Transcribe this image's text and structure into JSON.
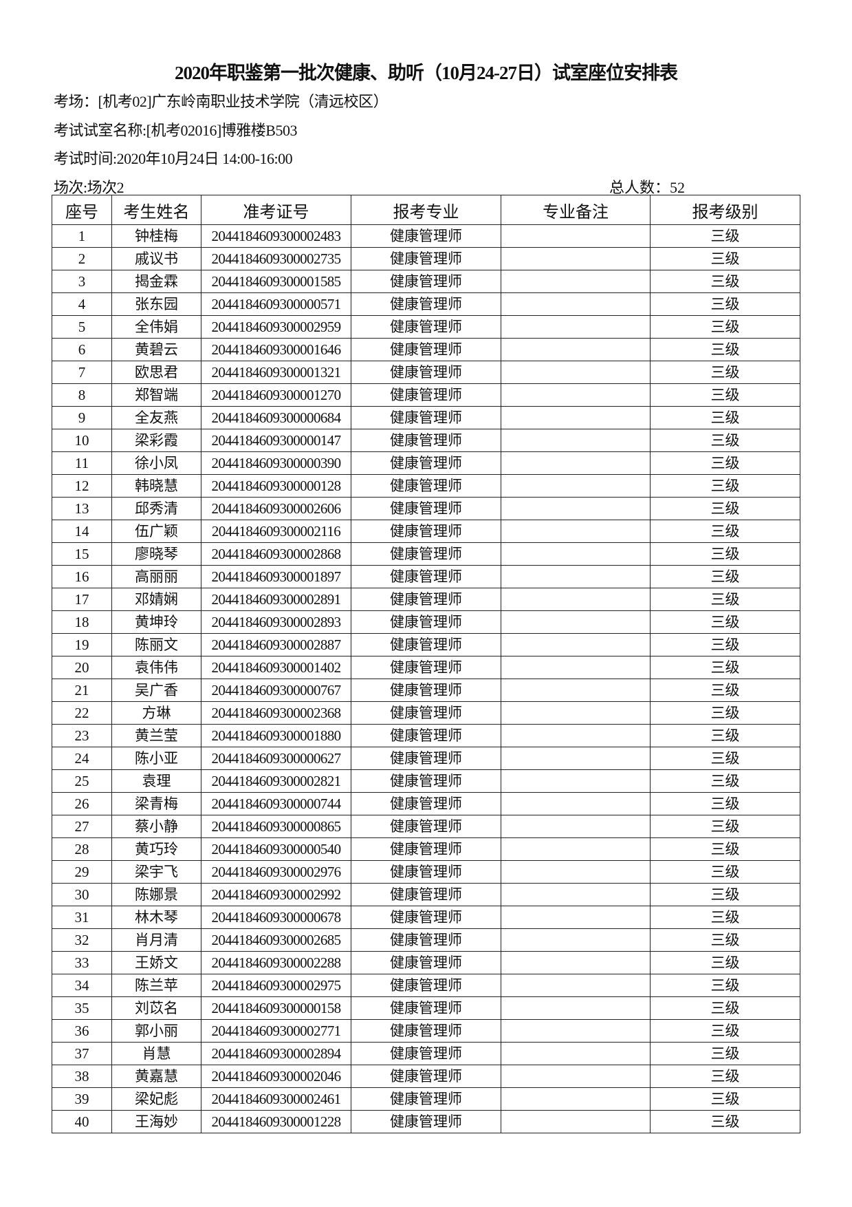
{
  "title": "2020年职鉴第一批次健康、助听（10月24-27日）试室座位安排表",
  "venue": "考场：[机考02]广东岭南职业技术学院（清远校区）",
  "room": "考试试室名称:[机考02016]博雅楼B503",
  "time": "考试时间:2020年10月24日 14:00-16:00",
  "session": "场次:场次2",
  "total": "总人数：52",
  "columns": [
    "座号",
    "考生姓名",
    "准考证号",
    "报考专业",
    "专业备注",
    "报考级别"
  ],
  "rows": [
    [
      "1",
      "钟桂梅",
      "2044184609300002483",
      "健康管理师",
      "",
      "三级"
    ],
    [
      "2",
      "戚议书",
      "2044184609300002735",
      "健康管理师",
      "",
      "三级"
    ],
    [
      "3",
      "揭金霖",
      "2044184609300001585",
      "健康管理师",
      "",
      "三级"
    ],
    [
      "4",
      "张东园",
      "2044184609300000571",
      "健康管理师",
      "",
      "三级"
    ],
    [
      "5",
      "全伟娟",
      "2044184609300002959",
      "健康管理师",
      "",
      "三级"
    ],
    [
      "6",
      "黄碧云",
      "2044184609300001646",
      "健康管理师",
      "",
      "三级"
    ],
    [
      "7",
      "欧思君",
      "2044184609300001321",
      "健康管理师",
      "",
      "三级"
    ],
    [
      "8",
      "郑智端",
      "2044184609300001270",
      "健康管理师",
      "",
      "三级"
    ],
    [
      "9",
      "全友燕",
      "2044184609300000684",
      "健康管理师",
      "",
      "三级"
    ],
    [
      "10",
      "梁彩霞",
      "2044184609300000147",
      "健康管理师",
      "",
      "三级"
    ],
    [
      "11",
      "徐小凤",
      "2044184609300000390",
      "健康管理师",
      "",
      "三级"
    ],
    [
      "12",
      "韩晓慧",
      "2044184609300000128",
      "健康管理师",
      "",
      "三级"
    ],
    [
      "13",
      "邱秀清",
      "2044184609300002606",
      "健康管理师",
      "",
      "三级"
    ],
    [
      "14",
      "伍广颖",
      "2044184609300002116",
      "健康管理师",
      "",
      "三级"
    ],
    [
      "15",
      "廖晓琴",
      "2044184609300002868",
      "健康管理师",
      "",
      "三级"
    ],
    [
      "16",
      "高丽丽",
      "2044184609300001897",
      "健康管理师",
      "",
      "三级"
    ],
    [
      "17",
      "邓婧娴",
      "2044184609300002891",
      "健康管理师",
      "",
      "三级"
    ],
    [
      "18",
      "黄坤玲",
      "2044184609300002893",
      "健康管理师",
      "",
      "三级"
    ],
    [
      "19",
      "陈丽文",
      "2044184609300002887",
      "健康管理师",
      "",
      "三级"
    ],
    [
      "20",
      "袁伟伟",
      "2044184609300001402",
      "健康管理师",
      "",
      "三级"
    ],
    [
      "21",
      "吴广香",
      "2044184609300000767",
      "健康管理师",
      "",
      "三级"
    ],
    [
      "22",
      "方琳",
      "2044184609300002368",
      "健康管理师",
      "",
      "三级"
    ],
    [
      "23",
      "黄兰莹",
      "2044184609300001880",
      "健康管理师",
      "",
      "三级"
    ],
    [
      "24",
      "陈小亚",
      "2044184609300000627",
      "健康管理师",
      "",
      "三级"
    ],
    [
      "25",
      "袁理",
      "2044184609300002821",
      "健康管理师",
      "",
      "三级"
    ],
    [
      "26",
      "梁青梅",
      "2044184609300000744",
      "健康管理师",
      "",
      "三级"
    ],
    [
      "27",
      "蔡小静",
      "2044184609300000865",
      "健康管理师",
      "",
      "三级"
    ],
    [
      "28",
      "黄巧玲",
      "2044184609300000540",
      "健康管理师",
      "",
      "三级"
    ],
    [
      "29",
      "梁宇飞",
      "2044184609300002976",
      "健康管理师",
      "",
      "三级"
    ],
    [
      "30",
      "陈娜景",
      "2044184609300002992",
      "健康管理师",
      "",
      "三级"
    ],
    [
      "31",
      "林木琴",
      "2044184609300000678",
      "健康管理师",
      "",
      "三级"
    ],
    [
      "32",
      "肖月清",
      "2044184609300002685",
      "健康管理师",
      "",
      "三级"
    ],
    [
      "33",
      "王娇文",
      "2044184609300002288",
      "健康管理师",
      "",
      "三级"
    ],
    [
      "34",
      "陈兰苹",
      "2044184609300002975",
      "健康管理师",
      "",
      "三级"
    ],
    [
      "35",
      "刘苡名",
      "2044184609300000158",
      "健康管理师",
      "",
      "三级"
    ],
    [
      "36",
      "郭小丽",
      "2044184609300002771",
      "健康管理师",
      "",
      "三级"
    ],
    [
      "37",
      "肖慧",
      "2044184609300002894",
      "健康管理师",
      "",
      "三级"
    ],
    [
      "38",
      "黄嘉慧",
      "2044184609300002046",
      "健康管理师",
      "",
      "三级"
    ],
    [
      "39",
      "梁妃彪",
      "2044184609300002461",
      "健康管理师",
      "",
      "三级"
    ],
    [
      "40",
      "王海妙",
      "2044184609300001228",
      "健康管理师",
      "",
      "三级"
    ]
  ]
}
